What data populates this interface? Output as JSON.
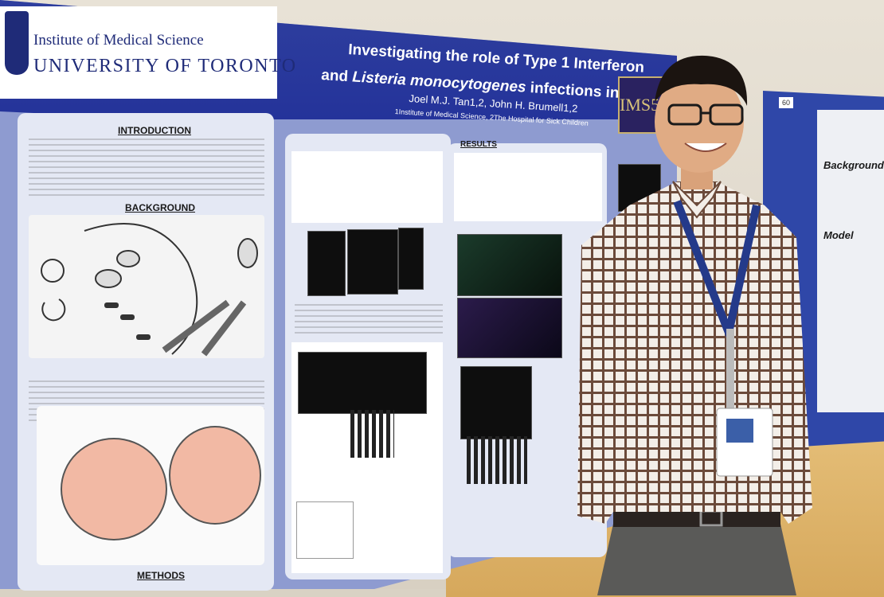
{
  "poster": {
    "institute": "Institute of Medical Science",
    "university": "UNIVERSITY OF TORONTO",
    "title_line1": "Investigating the role of Type 1 Interferon",
    "title_line2_prefix": "and ",
    "title_line2_italic": "Listeria monocytogenes",
    "title_line2_suffix": " infections in the brain",
    "authors": "Joel M.J. Tan1,2, John H. Brumell1,2",
    "affiliations": "1Institute of Medical Science, 2The Hospital for Sick Children",
    "logo": "IMS50",
    "sections": {
      "introduction": "INTRODUCTION",
      "background": "BACKGROUND",
      "results": "RESULTS",
      "methods": "METHODS"
    }
  },
  "right_poster": {
    "number": "60",
    "background": "Background",
    "model": "Model"
  },
  "colors": {
    "poster_header": "#2f3f9e",
    "poster_body": "#8e9bd0",
    "shirt_check": "#6b4a3a",
    "lanyard": "#243a8a"
  }
}
